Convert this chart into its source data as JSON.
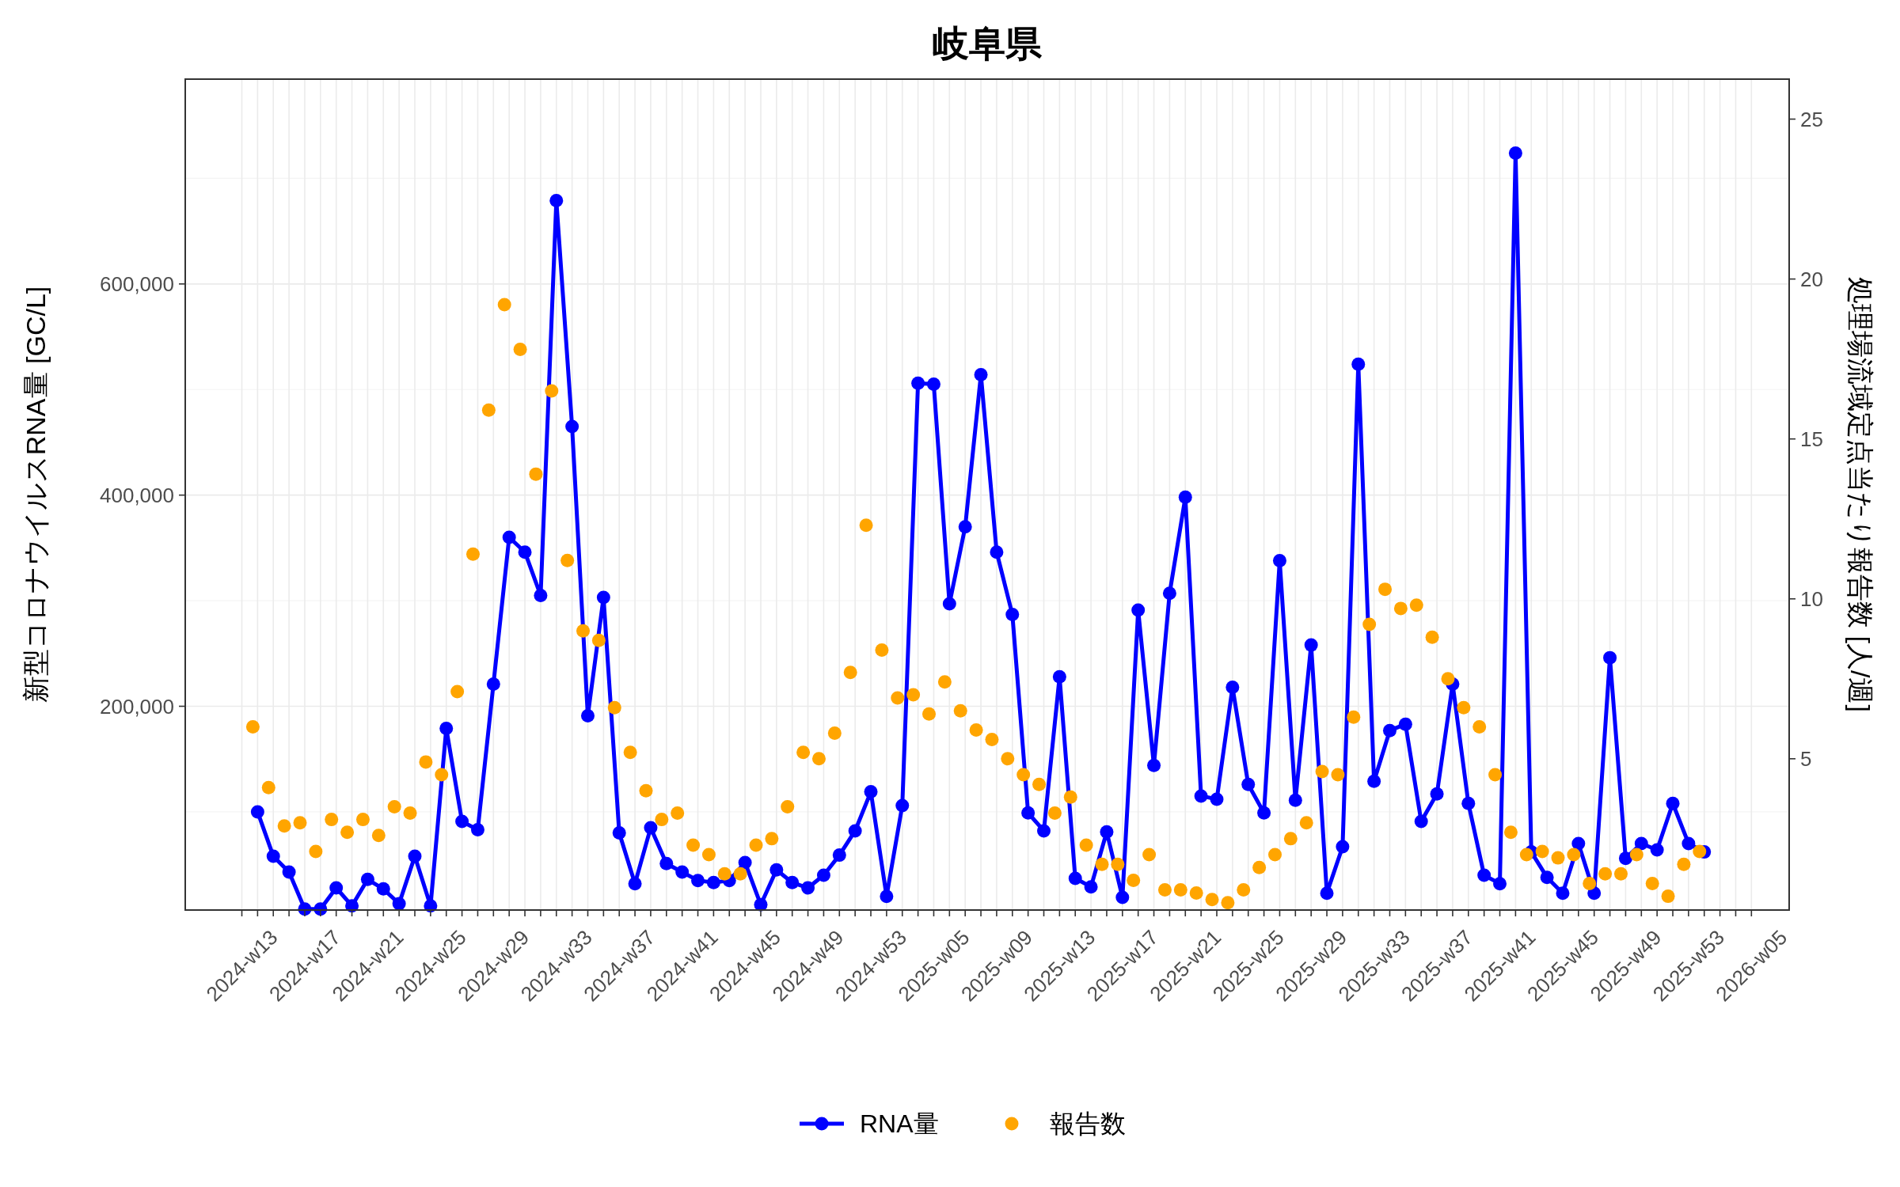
{
  "chart_data": {
    "type": "line",
    "title": "岐阜県",
    "ylabel": "新型コロナウイルスRNA量 [GC/L]",
    "y2label": "処理場流域定点当たり報告数 [人/週]",
    "categories": [
      "2024-w13",
      null,
      null,
      null,
      "2024-w17",
      null,
      null,
      null,
      "2024-w21",
      null,
      null,
      null,
      "2024-w25",
      null,
      null,
      null,
      "2024-w29",
      null,
      null,
      null,
      "2024-w33",
      null,
      null,
      null,
      "2024-w37",
      null,
      null,
      null,
      "2024-w41",
      null,
      null,
      null,
      "2024-w45",
      null,
      null,
      null,
      "2024-w49",
      null,
      null,
      null,
      "2024-w53",
      null,
      null,
      null,
      "2025-w05",
      null,
      null,
      null,
      "2025-w09",
      null,
      null,
      null,
      "2025-w13",
      null,
      null,
      null,
      "2025-w17",
      null,
      null,
      null,
      "2025-w21",
      null,
      null,
      null,
      "2025-w25",
      null,
      null,
      null,
      "2025-w29",
      null,
      null,
      null,
      "2025-w33",
      null,
      null,
      null,
      "2025-w37",
      null,
      null,
      null,
      "2025-w41",
      null,
      null,
      null,
      "2025-w45",
      null,
      null,
      null,
      "2025-w49",
      null,
      null,
      null,
      "2025-w53",
      null,
      null,
      null,
      "2026-w05"
    ],
    "ylim": [
      7000,
      794000
    ],
    "yticks": [
      {
        "value": 200000,
        "label": "200,000"
      },
      {
        "value": 400000,
        "label": "400,000"
      },
      {
        "value": 600000,
        "label": "600,000"
      }
    ],
    "y2lim": [
      0.27,
      26.25
    ],
    "y2ticks": [
      5,
      10,
      15,
      20,
      25
    ],
    "grid": true,
    "legend": "bottom",
    "marker": "circle",
    "line_style": "solid",
    "series": [
      {
        "name": "RNA量",
        "color": "#0000ff",
        "values": [
          null,
          100000,
          58000,
          43000,
          8000,
          8000,
          28000,
          11000,
          36000,
          27000,
          13000,
          58000,
          11000,
          179000,
          91000,
          83000,
          221000,
          360000,
          346000,
          305000,
          679000,
          465000,
          191000,
          303000,
          80000,
          32000,
          85000,
          51000,
          43000,
          35000,
          33000,
          35000,
          52000,
          12000,
          45000,
          33000,
          28000,
          40000,
          59000,
          82000,
          119000,
          20000,
          106000,
          506000,
          505000,
          297000,
          370000,
          514000,
          346000,
          287000,
          99000,
          82000,
          228000,
          37000,
          29000,
          81000,
          19000,
          291000,
          144000,
          307000,
          398000,
          115000,
          112000,
          218000,
          126000,
          99000,
          338000,
          111000,
          258000,
          23000,
          67000,
          524000,
          129000,
          177000,
          183000,
          91000,
          117000,
          221000,
          108000,
          40000,
          32000,
          724000,
          62000,
          38000,
          23000,
          70000,
          23000,
          246000,
          56000,
          70000,
          64000,
          108000,
          70000,
          62000,
          null,
          null,
          null
        ]
      },
      {
        "name": "報告数",
        "type": "scatter",
        "axis": "y2",
        "color": "#ffa500",
        "values": [
          null,
          6.0,
          4.1,
          2.9,
          3.0,
          2.1,
          3.1,
          2.7,
          3.1,
          2.6,
          3.5,
          3.3,
          4.9,
          4.5,
          7.1,
          11.4,
          15.9,
          19.2,
          17.8,
          13.9,
          16.5,
          11.2,
          9.0,
          8.7,
          6.6,
          5.2,
          4.0,
          3.1,
          3.3,
          2.3,
          2.0,
          1.4,
          1.4,
          2.3,
          2.5,
          3.5,
          5.2,
          5.0,
          5.8,
          7.7,
          12.3,
          8.4,
          6.9,
          7.0,
          6.4,
          7.4,
          6.5,
          5.9,
          5.6,
          5.0,
          4.5,
          4.2,
          3.3,
          3.8,
          2.3,
          1.7,
          1.7,
          1.2,
          2.0,
          0.9,
          0.9,
          0.8,
          0.6,
          0.5,
          0.9,
          1.6,
          2.0,
          2.5,
          3.0,
          4.6,
          4.5,
          6.3,
          9.2,
          10.3,
          9.7,
          9.8,
          8.8,
          7.5,
          6.6,
          6.0,
          4.5,
          2.7,
          2.0,
          2.1,
          1.9,
          2.0,
          1.1,
          1.4,
          1.4,
          2.0,
          1.1,
          0.7,
          1.7,
          2.1,
          null,
          null,
          null
        ]
      }
    ]
  }
}
